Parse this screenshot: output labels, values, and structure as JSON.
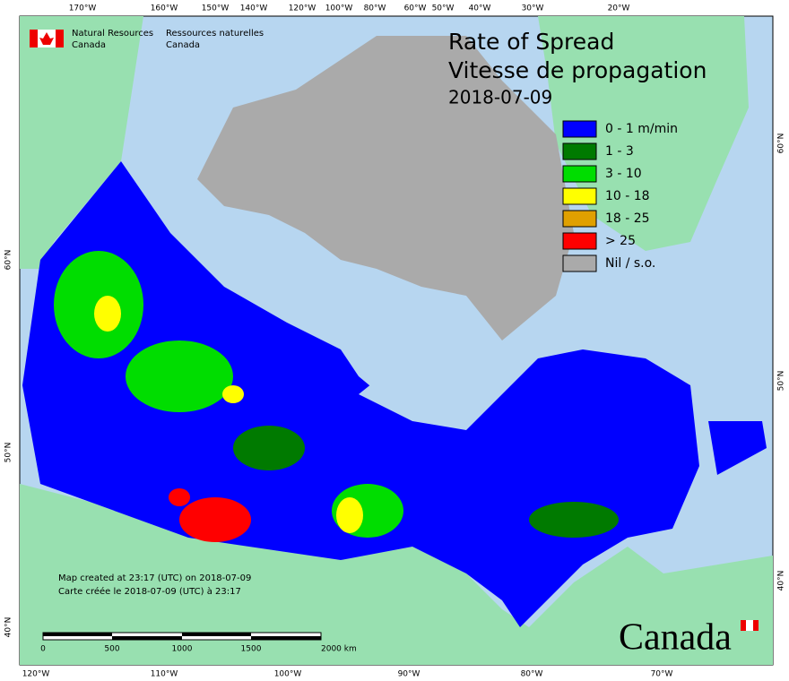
{
  "graticule_labels": {
    "top": [
      "170°W",
      "160°W",
      "150°W",
      "140°W",
      "120°W",
      "100°W",
      "80°W",
      "60°W",
      "50°W",
      "40°W",
      "30°W",
      "20°W"
    ],
    "bottom": [
      "120°W",
      "110°W",
      "100°W",
      "90°W",
      "80°W",
      "70°W"
    ],
    "left": [
      "60°N",
      "50°N",
      "40°N"
    ],
    "right": [
      "60°N",
      "50°N",
      "40°N"
    ]
  },
  "header": {
    "english": [
      "Natural Resources",
      "Canada"
    ],
    "french": [
      "Ressources naturelles",
      "Canada"
    ]
  },
  "title": {
    "line1": "Rate of Spread",
    "line2": "Vitesse de propagation",
    "date": "2018-07-09"
  },
  "legend": [
    {
      "label": "0 - 1 m/min",
      "color": "#0000ff"
    },
    {
      "label": "1 - 3",
      "color": "#007a00"
    },
    {
      "label": "3 - 10",
      "color": "#00dd00"
    },
    {
      "label": "10 - 18",
      "color": "#ffff00"
    },
    {
      "label": "18 - 25",
      "color": "#e0a000"
    },
    {
      "label": "> 25",
      "color": "#ff0000"
    },
    {
      "label": "Nil / s.o.",
      "color": "#aaaaaa"
    }
  ],
  "footer": {
    "created_en": "Map created at 23:17 (UTC) on 2018-07-09",
    "created_fr": "Carte créée le 2018-07-09 (UTC) à 23:17"
  },
  "scale_bar": [
    "0",
    "500",
    "1000",
    "1500",
    "2000 km"
  ],
  "wordmark": "Canada"
}
